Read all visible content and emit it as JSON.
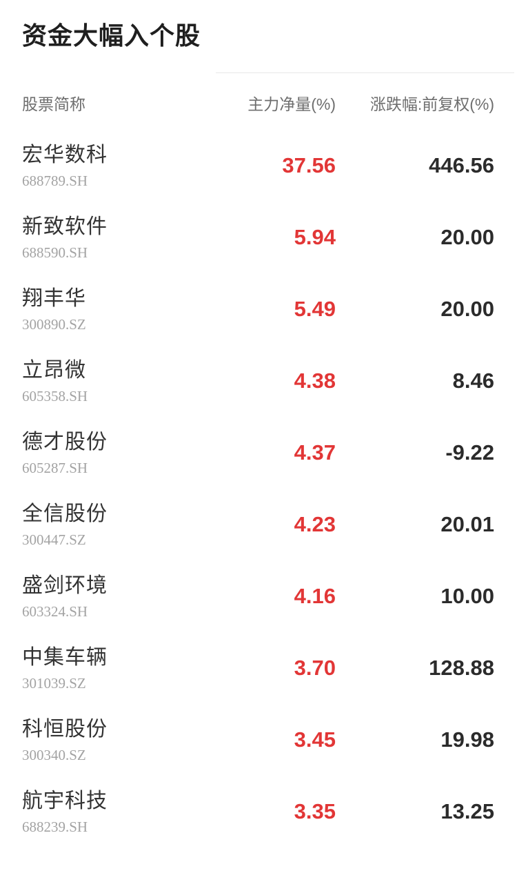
{
  "title": "资金大幅入个股",
  "table": {
    "headers": {
      "name": "股票简称",
      "main_net": "主力净量(%)",
      "change": "涨跌幅:前复权(%)"
    },
    "rows": [
      {
        "name": "宏华数科",
        "code": "688789.SH",
        "main_net": "37.56",
        "change": "446.56"
      },
      {
        "name": "新致软件",
        "code": "688590.SH",
        "main_net": "5.94",
        "change": "20.00"
      },
      {
        "name": "翔丰华",
        "code": "300890.SZ",
        "main_net": "5.49",
        "change": "20.00"
      },
      {
        "name": "立昂微",
        "code": "605358.SH",
        "main_net": "4.38",
        "change": "8.46"
      },
      {
        "name": "德才股份",
        "code": "605287.SH",
        "main_net": "4.37",
        "change": "-9.22"
      },
      {
        "name": "全信股份",
        "code": "300447.SZ",
        "main_net": "4.23",
        "change": "20.01"
      },
      {
        "name": "盛剑环境",
        "code": "603324.SH",
        "main_net": "4.16",
        "change": "10.00"
      },
      {
        "name": "中集车辆",
        "code": "301039.SZ",
        "main_net": "3.70",
        "change": "128.88"
      },
      {
        "name": "科恒股份",
        "code": "300340.SZ",
        "main_net": "3.45",
        "change": "19.98"
      },
      {
        "name": "航宇科技",
        "code": "688239.SH",
        "main_net": "3.35",
        "change": "13.25"
      }
    ]
  },
  "colors": {
    "up_red": "#e23636",
    "value_dark": "#2b2b2b",
    "name_color": "#333333",
    "code_grey": "#a3a3a3",
    "header_grey": "#6e6e6e",
    "title_color": "#1f1f1f",
    "divider": "#e7e7e7",
    "background": "#ffffff"
  }
}
